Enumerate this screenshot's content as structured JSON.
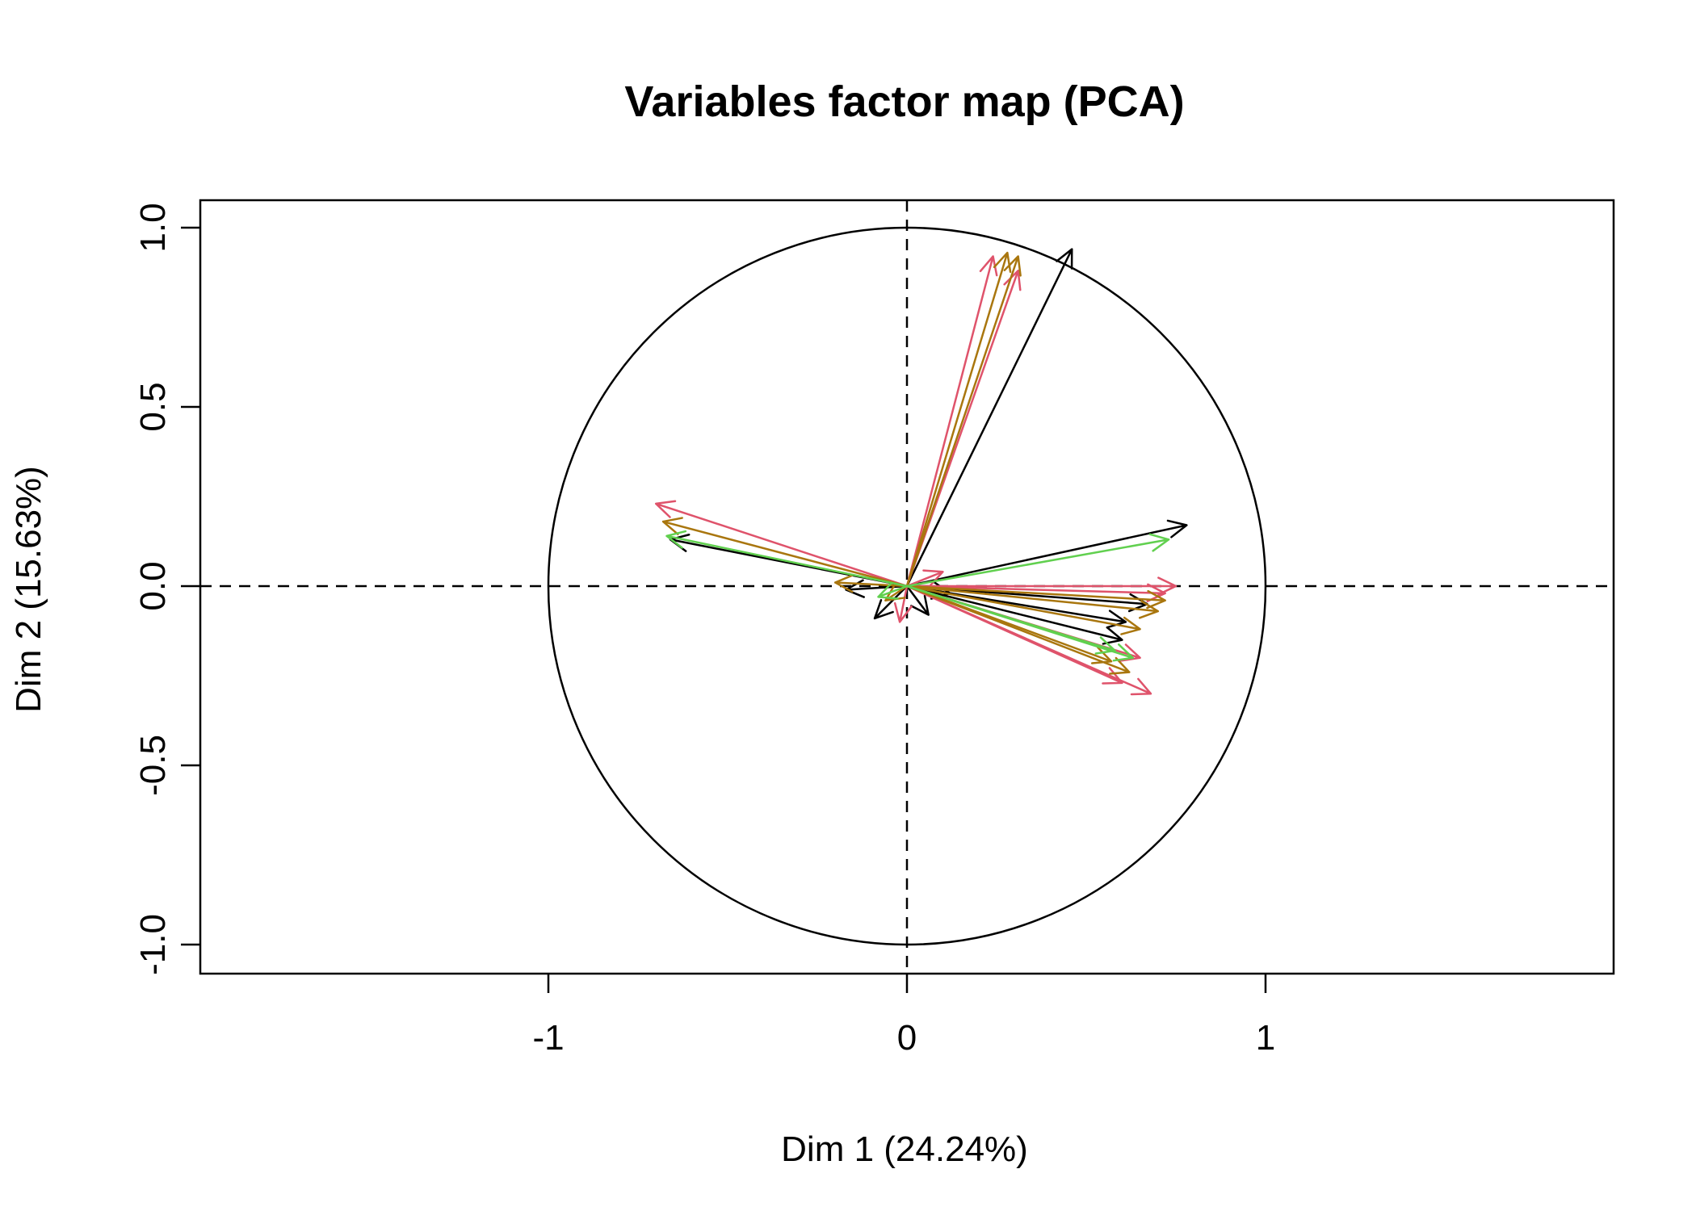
{
  "chart_data": {
    "type": "scatter",
    "subtype": "pca-variables-factor-map",
    "title": "Variables factor map (PCA)",
    "xlabel": "Dim 1 (24.24%)",
    "ylabel": "Dim 2 (15.63%)",
    "xlim": [
      -1.0,
      1.0
    ],
    "ylim": [
      -1.08,
      1.08
    ],
    "x_ticks": [
      -1,
      0,
      1
    ],
    "x_tick_labels": [
      "-1",
      "0",
      "1"
    ],
    "y_ticks": [
      -1.0,
      -0.5,
      0.0,
      0.5,
      1.0
    ],
    "y_tick_labels": [
      "-1.0",
      "-0.5",
      "0.0",
      "0.5",
      "1.0"
    ],
    "grid": false,
    "reference_lines": {
      "x0": "dashed",
      "y0": "dashed"
    },
    "unit_circle": true,
    "legend": "none",
    "colors": {
      "black": "#000000",
      "red": "#DF536B",
      "olive": "#A9760E",
      "green": "#61D04F"
    },
    "series": [
      {
        "color": "black",
        "points": [
          {
            "x": 0.46,
            "y": 0.94
          },
          {
            "x": 0.78,
            "y": 0.17
          },
          {
            "x": -0.66,
            "y": 0.13
          },
          {
            "x": 0.67,
            "y": -0.05
          },
          {
            "x": 0.61,
            "y": -0.1
          },
          {
            "x": 0.6,
            "y": -0.15
          },
          {
            "x": -0.17,
            "y": -0.01
          },
          {
            "x": -0.09,
            "y": -0.09
          },
          {
            "x": 0.06,
            "y": -0.08
          },
          {
            "x": 0.12,
            "y": -0.02
          }
        ]
      },
      {
        "color": "red",
        "points": [
          {
            "x": 0.24,
            "y": 0.92
          },
          {
            "x": 0.31,
            "y": 0.88
          },
          {
            "x": -0.7,
            "y": 0.23
          },
          {
            "x": 0.75,
            "y": 0.0
          },
          {
            "x": 0.72,
            "y": -0.02
          },
          {
            "x": 0.65,
            "y": -0.2
          },
          {
            "x": 0.68,
            "y": -0.3
          },
          {
            "x": 0.6,
            "y": -0.27
          },
          {
            "x": 0.1,
            "y": 0.04
          },
          {
            "x": -0.02,
            "y": -0.1
          }
        ]
      },
      {
        "color": "olive",
        "points": [
          {
            "x": 0.28,
            "y": 0.93
          },
          {
            "x": 0.31,
            "y": 0.92
          },
          {
            "x": -0.68,
            "y": 0.18
          },
          {
            "x": 0.72,
            "y": -0.04
          },
          {
            "x": 0.7,
            "y": -0.07
          },
          {
            "x": 0.65,
            "y": -0.12
          },
          {
            "x": 0.57,
            "y": -0.21
          },
          {
            "x": 0.62,
            "y": -0.24
          },
          {
            "x": -0.2,
            "y": 0.01
          },
          {
            "x": -0.06,
            "y": -0.04
          }
        ]
      },
      {
        "color": "green",
        "points": [
          {
            "x": 0.73,
            "y": 0.13
          },
          {
            "x": -0.67,
            "y": 0.14
          },
          {
            "x": 0.63,
            "y": -0.2
          },
          {
            "x": 0.58,
            "y": -0.18
          },
          {
            "x": -0.08,
            "y": -0.03
          }
        ]
      }
    ]
  }
}
